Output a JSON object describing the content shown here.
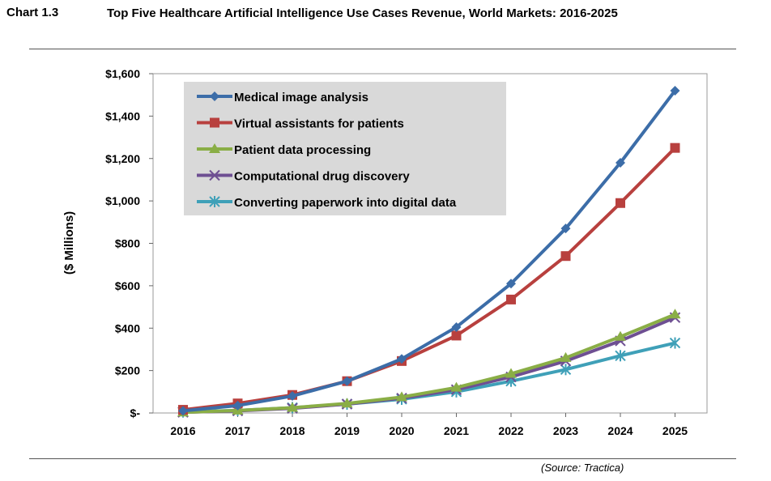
{
  "header": {
    "chart_label": "Chart 1.3",
    "title": "Top Five Healthcare Artificial Intelligence Use Cases Revenue, World Markets: 2016-2025"
  },
  "source": "(Source: Tractica)",
  "chart_data": {
    "type": "line",
    "title": "Top Five Healthcare Artificial Intelligence Use Cases Revenue, World Markets: 2016-2025",
    "xlabel": "",
    "ylabel": "($ Millions)",
    "categories": [
      "2016",
      "2017",
      "2018",
      "2019",
      "2020",
      "2021",
      "2022",
      "2023",
      "2024",
      "2025"
    ],
    "ylim": [
      0,
      1600
    ],
    "yticks": [
      0,
      200,
      400,
      600,
      800,
      1000,
      1200,
      1400,
      1600
    ],
    "ytick_labels": [
      "$-",
      "$200",
      "$400",
      "$600",
      "$800",
      "$1,000",
      "$1,200",
      "$1,400",
      "$1,600"
    ],
    "grid": false,
    "legend_position": "top-left",
    "series": [
      {
        "name": "Medical image analysis",
        "color": "#3C6DA8",
        "marker": "diamond",
        "values": [
          10,
          35,
          80,
          150,
          255,
          405,
          610,
          870,
          1180,
          1520
        ]
      },
      {
        "name": "Virtual assistants for patients",
        "color": "#B8403E",
        "marker": "square",
        "values": [
          15,
          45,
          85,
          150,
          245,
          365,
          535,
          740,
          990,
          1250
        ]
      },
      {
        "name": "Patient data processing",
        "color": "#8AAE46",
        "marker": "triangle",
        "values": [
          3,
          12,
          25,
          45,
          75,
          120,
          185,
          260,
          360,
          465
        ]
      },
      {
        "name": "Computational drug discovery",
        "color": "#6E4F92",
        "marker": "x",
        "values": [
          3,
          10,
          22,
          42,
          70,
          110,
          170,
          245,
          340,
          450
        ]
      },
      {
        "name": "Converting paperwork into digital data",
        "color": "#3FA0B8",
        "marker": "star",
        "values": [
          5,
          12,
          25,
          42,
          65,
          100,
          150,
          205,
          270,
          330
        ]
      }
    ]
  }
}
